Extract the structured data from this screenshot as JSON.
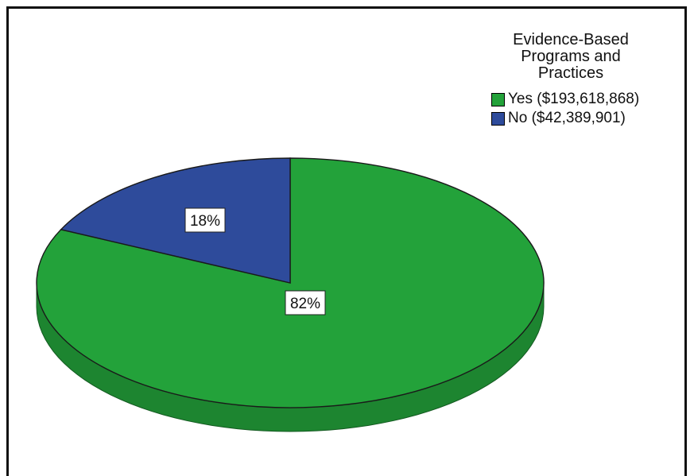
{
  "chart_data": {
    "type": "pie",
    "title": "",
    "legend_title": "Evidence-Based Programs and Practices",
    "legend_title_lines": [
      "Evidence-Based",
      "Programs and",
      "Practices"
    ],
    "legend_position": "top-right",
    "slices": [
      {
        "name": "Yes",
        "legend_label": "Yes ($193,618,868)",
        "value": 193618868,
        "percent_label": "82%",
        "color": "#23a23a"
      },
      {
        "name": "No",
        "legend_label": "No ($42,389,901)",
        "value": 42389901,
        "percent_label": "18%",
        "color": "#2e4b9b"
      }
    ],
    "style": "3d-tilted"
  }
}
